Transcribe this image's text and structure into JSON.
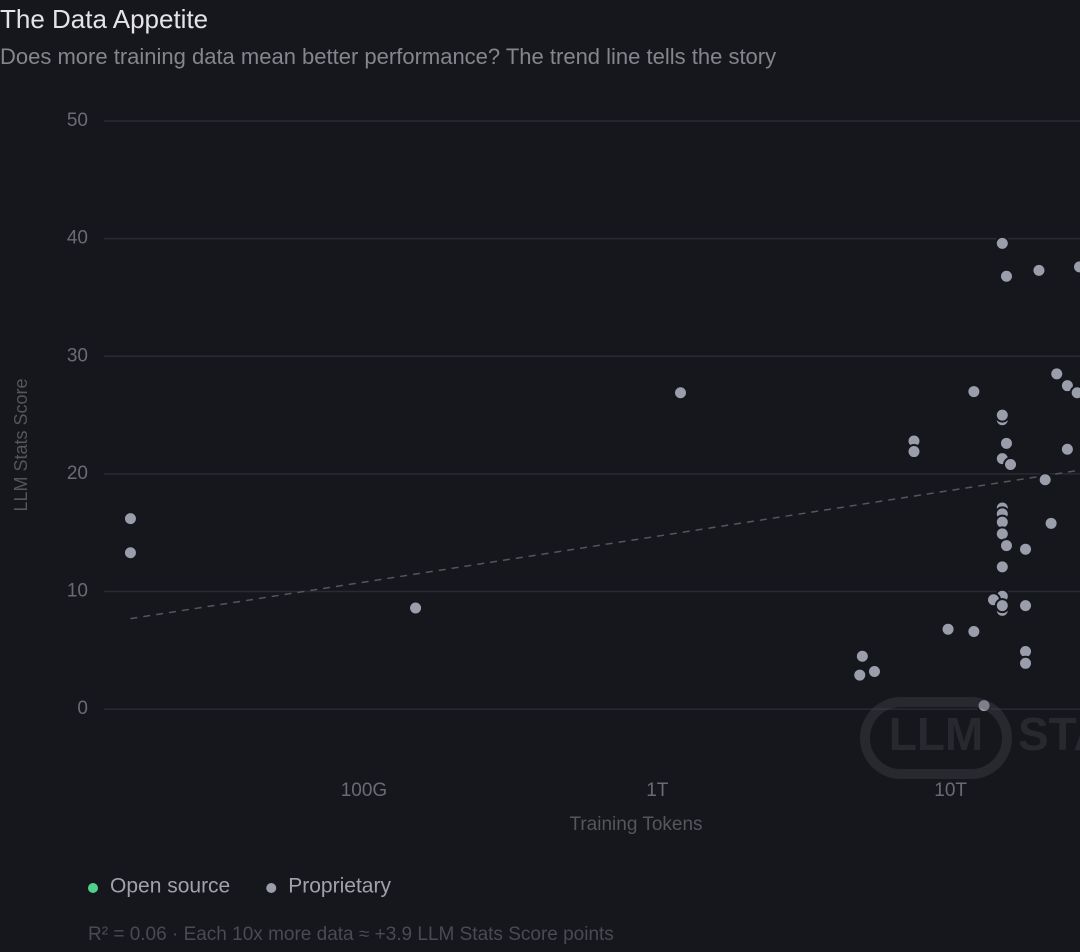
{
  "chart_data": {
    "type": "scatter",
    "title": "The Data Appetite",
    "subtitle": "Does more training data mean better performance? The trend line tells the story",
    "x_label": "Training Tokens",
    "y_label": "LLM Stats Score",
    "x_scale": "log",
    "xlim": [
      13000000000,
      100000000000000
    ],
    "xticks": [
      {
        "value": 100000000000,
        "label": "100G"
      },
      {
        "value": 1000000000000,
        "label": "1T"
      },
      {
        "value": 10000000000000,
        "label": "10T"
      }
    ],
    "ylim": [
      -5,
      50
    ],
    "yticks": [
      0,
      10,
      20,
      30,
      40,
      50
    ],
    "grid": true,
    "series": [
      {
        "name": "Open source",
        "color": "#4fd18b",
        "x": [],
        "y": []
      },
      {
        "name": "Proprietary",
        "color": "#9a9eab",
        "x": [
          16000000000,
          16000000000,
          150000000000,
          1200000000000,
          7500000000000,
          7500000000000,
          5000000000000,
          4900000000000,
          5500000000000,
          9800000000000,
          12000000000000,
          12000000000000,
          13000000000000,
          15000000000000,
          15500000000000,
          20000000000000,
          27500000000000,
          15000000000000,
          15000000000000,
          15500000000000,
          15000000000000,
          16000000000000,
          15000000000000,
          15000000000000,
          15000000000000,
          15000000000000,
          15500000000000,
          18000000000000,
          15000000000000,
          15000000000000,
          14000000000000,
          15000000000000,
          15000000000000,
          18000000000000,
          18000000000000,
          18000000000000,
          21000000000000,
          22000000000000,
          23000000000000,
          25000000000000,
          27000000000000,
          25000000000000
        ],
        "y": [
          16.2,
          13.3,
          8.6,
          26.9,
          22.8,
          21.9,
          4.5,
          2.9,
          3.2,
          6.8,
          27,
          6.6,
          0.3,
          39.6,
          36.8,
          37.3,
          37.6,
          24.6,
          25,
          22.6,
          21.3,
          20.8,
          17.1,
          16.6,
          15.9,
          14.9,
          13.9,
          13.6,
          12.1,
          9.6,
          9.3,
          8.4,
          8.8,
          8.8,
          4.9,
          3.9,
          19.5,
          15.8,
          28.5,
          27.5,
          26.9,
          22.1
        ]
      }
    ],
    "trend": {
      "x": [
        16000000000,
        100000000000000
      ],
      "y": [
        7.7,
        22.5
      ]
    },
    "note": "R² = 0.06 · Each 10x more data ≈ +3.9 LLM Stats Score points",
    "watermark": [
      "LLM",
      "STATS"
    ]
  }
}
